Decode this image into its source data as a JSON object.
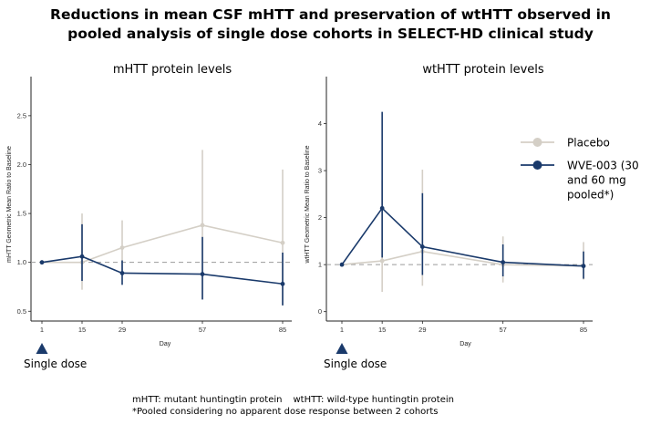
{
  "title_lines": [
    "Reductions in mean CSF mHTT and preservation of wtHTT observed in",
    "pooled analysis of single dose cohorts in SELECT-HD clinical study"
  ],
  "footnotes": {
    "abbrev_mhtt": "mHTT: mutant huntingtin protein",
    "abbrev_wthtt": "wtHTT: wild-type huntingtin protein",
    "pooled_note": "*Pooled considering no apparent dose response between 2 cohorts"
  },
  "legend": {
    "placement": "right of second panel",
    "entries": [
      {
        "lines": [
          "Placebo"
        ],
        "color": "#d4cfc6"
      },
      {
        "lines": [
          "WVE-003 (30",
          "and 60 mg",
          "pooled*)"
        ],
        "color": "#1a3a6b"
      }
    ]
  },
  "chart_data": [
    {
      "type": "line",
      "title": "mHTT protein levels",
      "xlabel": "Day",
      "ylabel": "mHTT Geometric Mean Ratio to Baseline",
      "x_ticks": [
        "1",
        "15",
        "29",
        "57",
        "85"
      ],
      "y_ticks": [
        "0.5",
        "1.0",
        "1.5",
        "2.0",
        "2.5"
      ],
      "xlim": [
        1,
        85
      ],
      "ylim": [
        0.4,
        2.9
      ],
      "grid": false,
      "reference_line": 1.0,
      "annotation": "Single dose",
      "series": [
        {
          "name": "Placebo",
          "color": "#d4cfc6",
          "x": [
            1,
            15,
            29,
            57,
            85
          ],
          "y": [
            1.0,
            1.0,
            1.15,
            1.38,
            1.2
          ],
          "lower": [
            null,
            0.72,
            0.86,
            0.62,
            0.56
          ],
          "upper": [
            null,
            1.5,
            1.43,
            2.15,
            1.95
          ]
        },
        {
          "name": "WVE-003 (30 and 60 mg pooled*)",
          "color": "#1a3a6b",
          "x": [
            1,
            15,
            29,
            57,
            85
          ],
          "y": [
            1.0,
            1.06,
            0.89,
            0.88,
            0.78
          ],
          "lower": [
            null,
            0.81,
            0.77,
            0.62,
            0.56
          ],
          "upper": [
            null,
            1.39,
            1.02,
            1.26,
            1.1
          ]
        }
      ]
    },
    {
      "type": "line",
      "title": "wtHTT protein levels",
      "xlabel": "Day",
      "ylabel": "wtHTT Geometric Mean Ratio to Baseline",
      "x_ticks": [
        "1",
        "15",
        "29",
        "57",
        "85"
      ],
      "y_ticks": [
        "0",
        "1",
        "2",
        "3",
        "4"
      ],
      "xlim": [
        1,
        85
      ],
      "ylim": [
        -0.2,
        5.0
      ],
      "grid": false,
      "reference_line": 1.0,
      "annotation": "Single dose",
      "series": [
        {
          "name": "Placebo",
          "color": "#d4cfc6",
          "x": [
            1,
            15,
            29,
            57,
            85
          ],
          "y": [
            1.0,
            1.08,
            1.28,
            1.0,
            0.97
          ],
          "lower": [
            null,
            0.42,
            0.55,
            0.62,
            0.68
          ],
          "upper": [
            null,
            2.8,
            3.02,
            1.6,
            1.48
          ]
        },
        {
          "name": "WVE-003 (30 and 60 mg pooled*)",
          "color": "#1a3a6b",
          "x": [
            1,
            15,
            29,
            57,
            85
          ],
          "y": [
            1.0,
            2.2,
            1.38,
            1.05,
            0.97
          ],
          "lower": [
            null,
            1.15,
            0.78,
            0.75,
            0.7
          ],
          "upper": [
            null,
            4.25,
            2.52,
            1.43,
            1.28
          ]
        }
      ]
    }
  ]
}
